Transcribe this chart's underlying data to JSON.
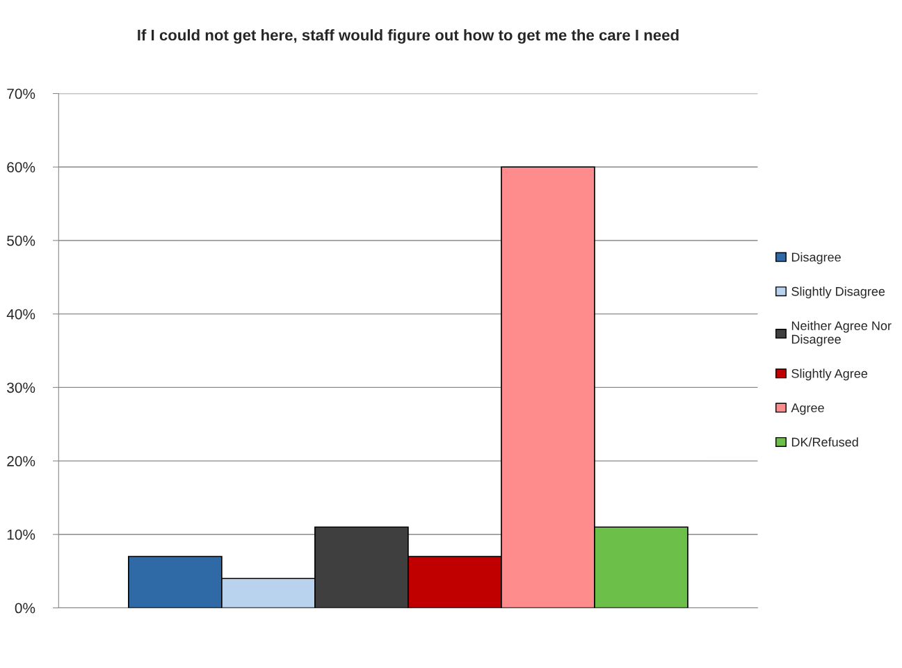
{
  "chart_data": {
    "type": "bar",
    "title": "If I could not get here, staff would figure out how to get me the care I need",
    "categories": [
      null
    ],
    "series": [
      {
        "name": "Disagree",
        "color": "#2f6aa6",
        "values": [
          7
        ]
      },
      {
        "name": "Slightly Disagree",
        "color": "#b9d3ee",
        "values": [
          4
        ]
      },
      {
        "name": "Neither Agree Nor Disagree",
        "color": "#3f3f3f",
        "values": [
          11
        ]
      },
      {
        "name": "Slightly Agree",
        "color": "#c00000",
        "values": [
          7
        ]
      },
      {
        "name": "Agree",
        "color": "#ff8c8c",
        "values": [
          60
        ]
      },
      {
        "name": "DK/Refused",
        "color": "#6cc04a",
        "values": [
          11
        ]
      }
    ],
    "ylim": [
      0,
      70
    ],
    "yticks": [
      {
        "value": 0,
        "label": "0%"
      },
      {
        "value": 10,
        "label": "10%"
      },
      {
        "value": 20,
        "label": "20%"
      },
      {
        "value": 30,
        "label": "30%"
      },
      {
        "value": 40,
        "label": "40%"
      },
      {
        "value": 50,
        "label": "50%"
      },
      {
        "value": 60,
        "label": "60%"
      },
      {
        "value": 70,
        "label": "70%"
      }
    ],
    "grid": "y",
    "legend": "right"
  }
}
